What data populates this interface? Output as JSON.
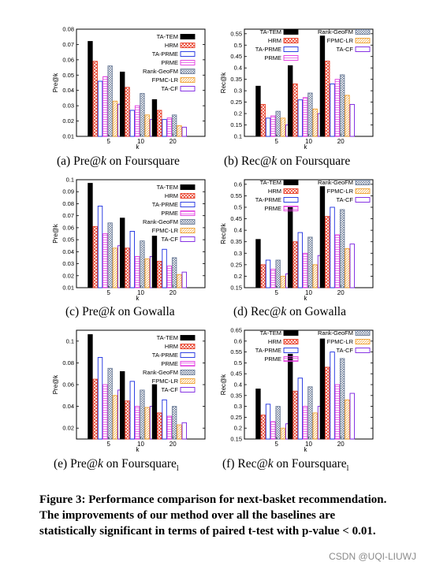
{
  "chart_data": [
    {
      "type": "bar",
      "caption": "(a) Pre@k on Foursquare",
      "ylabel": "Pre@k",
      "xlabel": "k",
      "categories": [
        "5",
        "10",
        "20"
      ],
      "ylim": [
        0.01,
        0.08
      ],
      "yticks": [
        "0.01",
        "0.02",
        "0.03",
        "0.04",
        "0.05",
        "0.06",
        "0.07",
        "0.08"
      ],
      "series": [
        {
          "name": "TA-TEM",
          "values": [
            0.072,
            0.052,
            0.034
          ]
        },
        {
          "name": "HRM",
          "values": [
            0.059,
            0.042,
            0.027
          ]
        },
        {
          "name": "TA-PRME",
          "values": [
            0.046,
            0.027,
            0.021
          ]
        },
        {
          "name": "PRME",
          "values": [
            0.049,
            0.03,
            0.022
          ]
        },
        {
          "name": "Rank-GeoFM",
          "values": [
            0.056,
            0.038,
            0.024
          ]
        },
        {
          "name": "FPMC-LR",
          "values": [
            0.033,
            0.024,
            0.017
          ]
        },
        {
          "name": "TA-CF",
          "values": [
            0.031,
            0.021,
            0.016
          ]
        }
      ],
      "legend": "top-right"
    },
    {
      "type": "bar",
      "caption": "(b) Rec@k on Foursquare",
      "ylabel": "Rec@k",
      "xlabel": "k",
      "categories": [
        "5",
        "10",
        "20"
      ],
      "ylim": [
        0.1,
        0.57
      ],
      "yticks": [
        "0.1",
        "0.15",
        "0.2",
        "0.25",
        "0.3",
        "0.35",
        "0.4",
        "0.45",
        "0.5",
        "0.55"
      ],
      "series": [
        {
          "name": "TA-TEM",
          "values": [
            0.32,
            0.41,
            0.54
          ]
        },
        {
          "name": "HRM",
          "values": [
            0.24,
            0.33,
            0.43
          ]
        },
        {
          "name": "TA-PRME",
          "values": [
            0.18,
            0.26,
            0.33
          ]
        },
        {
          "name": "PRME",
          "values": [
            0.19,
            0.27,
            0.35
          ]
        },
        {
          "name": "Rank-GeoFM",
          "values": [
            0.21,
            0.29,
            0.37
          ]
        },
        {
          "name": "FPMC-LR",
          "values": [
            0.18,
            0.22,
            0.28
          ]
        },
        {
          "name": "TA-CF",
          "values": [
            0.15,
            0.2,
            0.24
          ]
        }
      ],
      "legend": "top, two columns"
    },
    {
      "type": "bar",
      "caption": "(c) Pre@k on Gowalla",
      "ylabel": "Pre@k",
      "xlabel": "k",
      "categories": [
        "5",
        "10",
        "20"
      ],
      "ylim": [
        0.01,
        0.1
      ],
      "yticks": [
        "0.01",
        "0.02",
        "0.03",
        "0.04",
        "0.05",
        "0.06",
        "0.07",
        "0.08",
        "0.09",
        "0.1"
      ],
      "series": [
        {
          "name": "TA-TEM",
          "values": [
            0.097,
            0.068,
            0.053
          ]
        },
        {
          "name": "HRM",
          "values": [
            0.061,
            0.043,
            0.032
          ]
        },
        {
          "name": "TA-PRME",
          "values": [
            0.078,
            0.057,
            0.042
          ]
        },
        {
          "name": "PRME",
          "values": [
            0.055,
            0.036,
            0.028
          ]
        },
        {
          "name": "Rank-GeoFM",
          "values": [
            0.064,
            0.049,
            0.035
          ]
        },
        {
          "name": "FPMC-LR",
          "values": [
            0.043,
            0.034,
            0.021
          ]
        },
        {
          "name": "TA-CF",
          "values": [
            0.045,
            0.036,
            0.023
          ]
        }
      ],
      "legend": "top-right"
    },
    {
      "type": "bar",
      "caption": "(d) Rec@k on Gowalla",
      "ylabel": "Rec@k",
      "xlabel": "k",
      "categories": [
        "5",
        "10",
        "20"
      ],
      "ylim": [
        0.15,
        0.62
      ],
      "yticks": [
        "0.15",
        "0.2",
        "0.25",
        "0.3",
        "0.35",
        "0.4",
        "0.45",
        "0.5",
        "0.55",
        "0.6"
      ],
      "series": [
        {
          "name": "TA-TEM",
          "values": [
            0.36,
            0.5,
            0.59
          ]
        },
        {
          "name": "HRM",
          "values": [
            0.25,
            0.35,
            0.46
          ]
        },
        {
          "name": "TA-PRME",
          "values": [
            0.27,
            0.39,
            0.5
          ]
        },
        {
          "name": "PRME",
          "values": [
            0.23,
            0.3,
            0.38
          ]
        },
        {
          "name": "Rank-GeoFM",
          "values": [
            0.27,
            0.37,
            0.49
          ]
        },
        {
          "name": "FPMC-LR",
          "values": [
            0.2,
            0.25,
            0.32
          ]
        },
        {
          "name": "TA-CF",
          "values": [
            0.21,
            0.29,
            0.34
          ]
        }
      ],
      "legend": "top, two columns"
    },
    {
      "type": "bar",
      "caption": "(e) Pre@k on Foursquare",
      "caption_sub": "l",
      "ylabel": "Pre@k",
      "xlabel": "k",
      "categories": [
        "5",
        "10",
        "20"
      ],
      "ylim": [
        0.01,
        0.11
      ],
      "yticks": [
        "0.02",
        "0.04",
        "0.06",
        "0.08",
        "0.1"
      ],
      "series": [
        {
          "name": "TA-TEM",
          "values": [
            0.106,
            0.072,
            0.06
          ]
        },
        {
          "name": "HRM",
          "values": [
            0.065,
            0.045,
            0.034
          ]
        },
        {
          "name": "TA-PRME",
          "values": [
            0.085,
            0.063,
            0.046
          ]
        },
        {
          "name": "PRME",
          "values": [
            0.06,
            0.04,
            0.031
          ]
        },
        {
          "name": "Rank-GeoFM",
          "values": [
            0.075,
            0.055,
            0.04
          ]
        },
        {
          "name": "FPMC-LR",
          "values": [
            0.05,
            0.039,
            0.023
          ]
        },
        {
          "name": "TA-CF",
          "values": [
            0.055,
            0.04,
            0.025
          ]
        }
      ],
      "legend": "top-right"
    },
    {
      "type": "bar",
      "caption": "(f) Rec@k on Foursquare",
      "caption_sub": "l",
      "ylabel": "Rec@k",
      "xlabel": "k",
      "categories": [
        "5",
        "10",
        "20"
      ],
      "ylim": [
        0.15,
        0.65
      ],
      "yticks": [
        "0.15",
        "0.2",
        "0.25",
        "0.3",
        "0.35",
        "0.4",
        "0.45",
        "0.5",
        "0.55",
        "0.6",
        "0.65"
      ],
      "series": [
        {
          "name": "TA-TEM",
          "values": [
            0.38,
            0.54,
            0.61
          ]
        },
        {
          "name": "HRM",
          "values": [
            0.26,
            0.37,
            0.48
          ]
        },
        {
          "name": "TA-PRME",
          "values": [
            0.31,
            0.43,
            0.55
          ]
        },
        {
          "name": "PRME",
          "values": [
            0.23,
            0.3,
            0.4
          ]
        },
        {
          "name": "Rank-GeoFM",
          "values": [
            0.3,
            0.39,
            0.52
          ]
        },
        {
          "name": "FPMC-LR",
          "values": [
            0.2,
            0.27,
            0.33
          ]
        },
        {
          "name": "TA-CF",
          "values": [
            0.22,
            0.3,
            0.36
          ]
        }
      ],
      "legend": "top, two columns"
    }
  ],
  "series_styles": [
    {
      "name": "TA-TEM",
      "color": "#000000",
      "fill": "solid"
    },
    {
      "name": "HRM",
      "color": "#e8402a",
      "fill": "crosshatch"
    },
    {
      "name": "TA-PRME",
      "color": "#1a2ee0",
      "fill": "none"
    },
    {
      "name": "PRME",
      "color": "#e23ae0",
      "fill": "lines"
    },
    {
      "name": "Rank-GeoFM",
      "color": "#6f7f9a",
      "fill": "checker"
    },
    {
      "name": "FPMC-LR",
      "color": "#f0a030",
      "fill": "lines"
    },
    {
      "name": "TA-CF",
      "color": "#7a1ee0",
      "fill": "none"
    }
  ],
  "figure_caption": "Figure 3: Performance comparison for next-basket recommendation. The improvements of our method over all the baselines are statistically significant in terms of paired t-test with p-value < 0.01.",
  "watermark": "CSDN @UQI-LIUWJ"
}
